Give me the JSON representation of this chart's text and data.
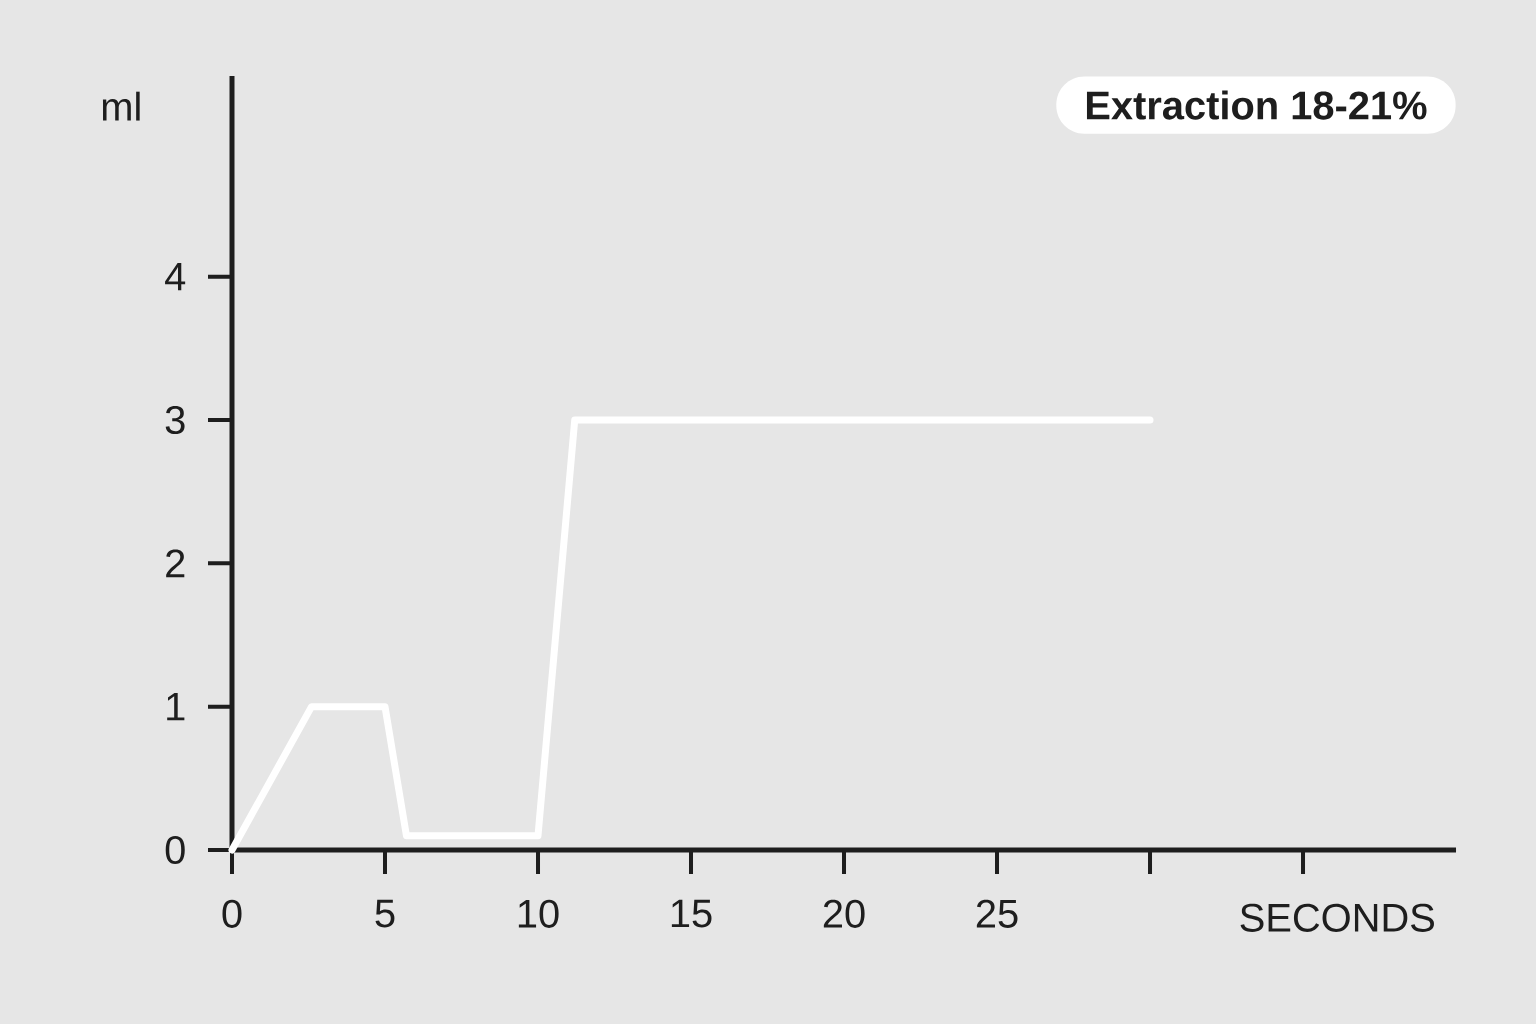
{
  "chart_data": {
    "type": "line",
    "xlabel": "SECONDS",
    "ylabel": "ml",
    "annotations": [
      "Extraction 18-21%"
    ],
    "xlim": [
      0,
      40
    ],
    "ylim": [
      0,
      5.4
    ],
    "xticks": [
      0,
      5,
      10,
      15,
      20,
      25,
      {
        "value": 30,
        "label": null
      },
      {
        "value": 35,
        "label": null
      }
    ],
    "yticks": [
      0,
      1,
      2,
      3,
      4
    ],
    "series": [
      {
        "color": "#ffffff",
        "x": [
          0,
          2.6,
          5,
          5.7,
          10,
          11.2,
          30
        ],
        "values": [
          0,
          1,
          1,
          0.1,
          0.1,
          3,
          3
        ]
      }
    ]
  }
}
